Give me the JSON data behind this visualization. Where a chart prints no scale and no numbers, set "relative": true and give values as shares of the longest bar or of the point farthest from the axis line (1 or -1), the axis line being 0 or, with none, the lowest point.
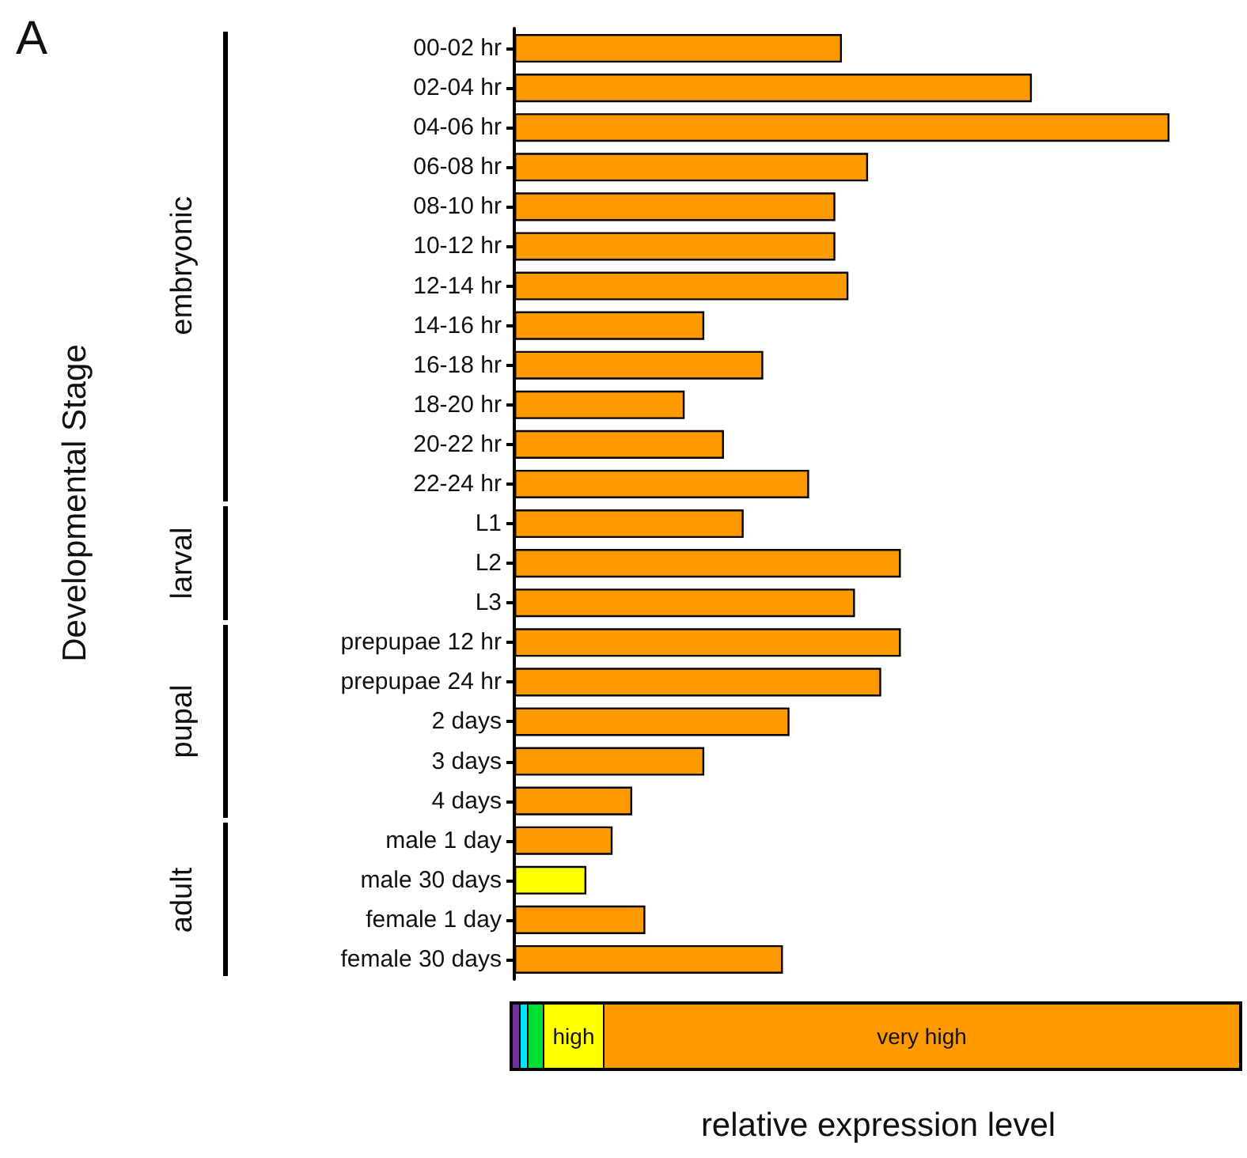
{
  "chart_data": {
    "type": "bar",
    "orientation": "horizontal",
    "relative": true,
    "xlabel": "relative expression level",
    "categories": [
      "00-02 hr",
      "02-04 hr",
      "04-06 hr",
      "06-08 hr",
      "08-10 hr",
      "10-12 hr",
      "12-14 hr",
      "14-16 hr",
      "16-18 hr",
      "18-20 hr",
      "20-22 hr",
      "22-24 hr",
      "L1",
      "L2",
      "L3",
      "prepupae 12 hr",
      "prepupae 24 hr",
      "2 days",
      "3 days",
      "4 days",
      "male 1 day",
      "male 30 days",
      "female 1 day",
      "female 30 days"
    ],
    "values": [
      0.5,
      0.79,
      1,
      0.54,
      0.49,
      0.49,
      0.51,
      0.29,
      0.38,
      0.26,
      0.32,
      0.45,
      0.35,
      0.59,
      0.52,
      0.59,
      0.56,
      0.42,
      0.29,
      0.18,
      0.15,
      0.11,
      0.2,
      0.41
    ],
    "colors": [
      "#ff9900",
      "#ff9900",
      "#ff9900",
      "#ff9900",
      "#ff9900",
      "#ff9900",
      "#ff9900",
      "#ff9900",
      "#ff9900",
      "#ff9900",
      "#ff9900",
      "#ff9900",
      "#ff9900",
      "#ff9900",
      "#ff9900",
      "#ff9900",
      "#ff9900",
      "#ff9900",
      "#ff9900",
      "#ff9900",
      "#ff9900",
      "#ffff00",
      "#ff9900",
      "#ff9900"
    ],
    "annotations": [
      "A",
      "embryonic",
      "larval",
      "pupal",
      "adult",
      "high",
      "very high",
      "Developmental Stage"
    ]
  }
}
